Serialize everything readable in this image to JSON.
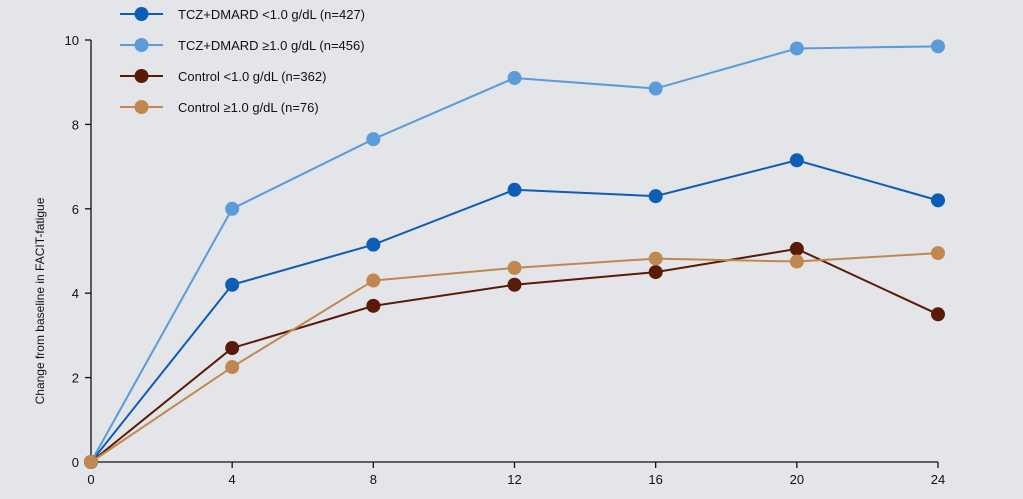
{
  "chart_data": {
    "type": "line",
    "title": "",
    "xlabel": "",
    "ylabel": "Change from baseline in FACIT-fatigue",
    "x": [
      0,
      4,
      8,
      12,
      16,
      20,
      24
    ],
    "xlim": [
      0,
      24
    ],
    "ylim": [
      0,
      10
    ],
    "xticks": [
      "0",
      "4",
      "8",
      "12",
      "16",
      "20",
      "24"
    ],
    "yticks": [
      "0",
      "2",
      "4",
      "6",
      "8",
      "10"
    ],
    "grid": false,
    "legend_position": "top-left",
    "series": [
      {
        "name": "TCZ+DMARD <1.0 g/dL (n=427)",
        "color": "#0d5cb6",
        "values": [
          0,
          4.2,
          5.15,
          6.45,
          6.3,
          7.15,
          6.2
        ]
      },
      {
        "name": "TCZ+DMARD ≥1.0 g/dL (n=456)",
        "color": "#5b9bd9",
        "values": [
          0,
          6.0,
          7.65,
          9.1,
          8.85,
          9.8,
          9.85
        ]
      },
      {
        "name": "Control <1.0 g/dL (n=362)",
        "color": "#5a1a08",
        "values": [
          0,
          2.7,
          3.7,
          4.2,
          4.5,
          5.05,
          3.5
        ]
      },
      {
        "name": "Control ≥1.0 g/dL (n=76)",
        "color": "#c08850",
        "values": [
          0,
          2.25,
          4.3,
          4.6,
          4.82,
          4.75,
          4.95
        ]
      }
    ]
  }
}
